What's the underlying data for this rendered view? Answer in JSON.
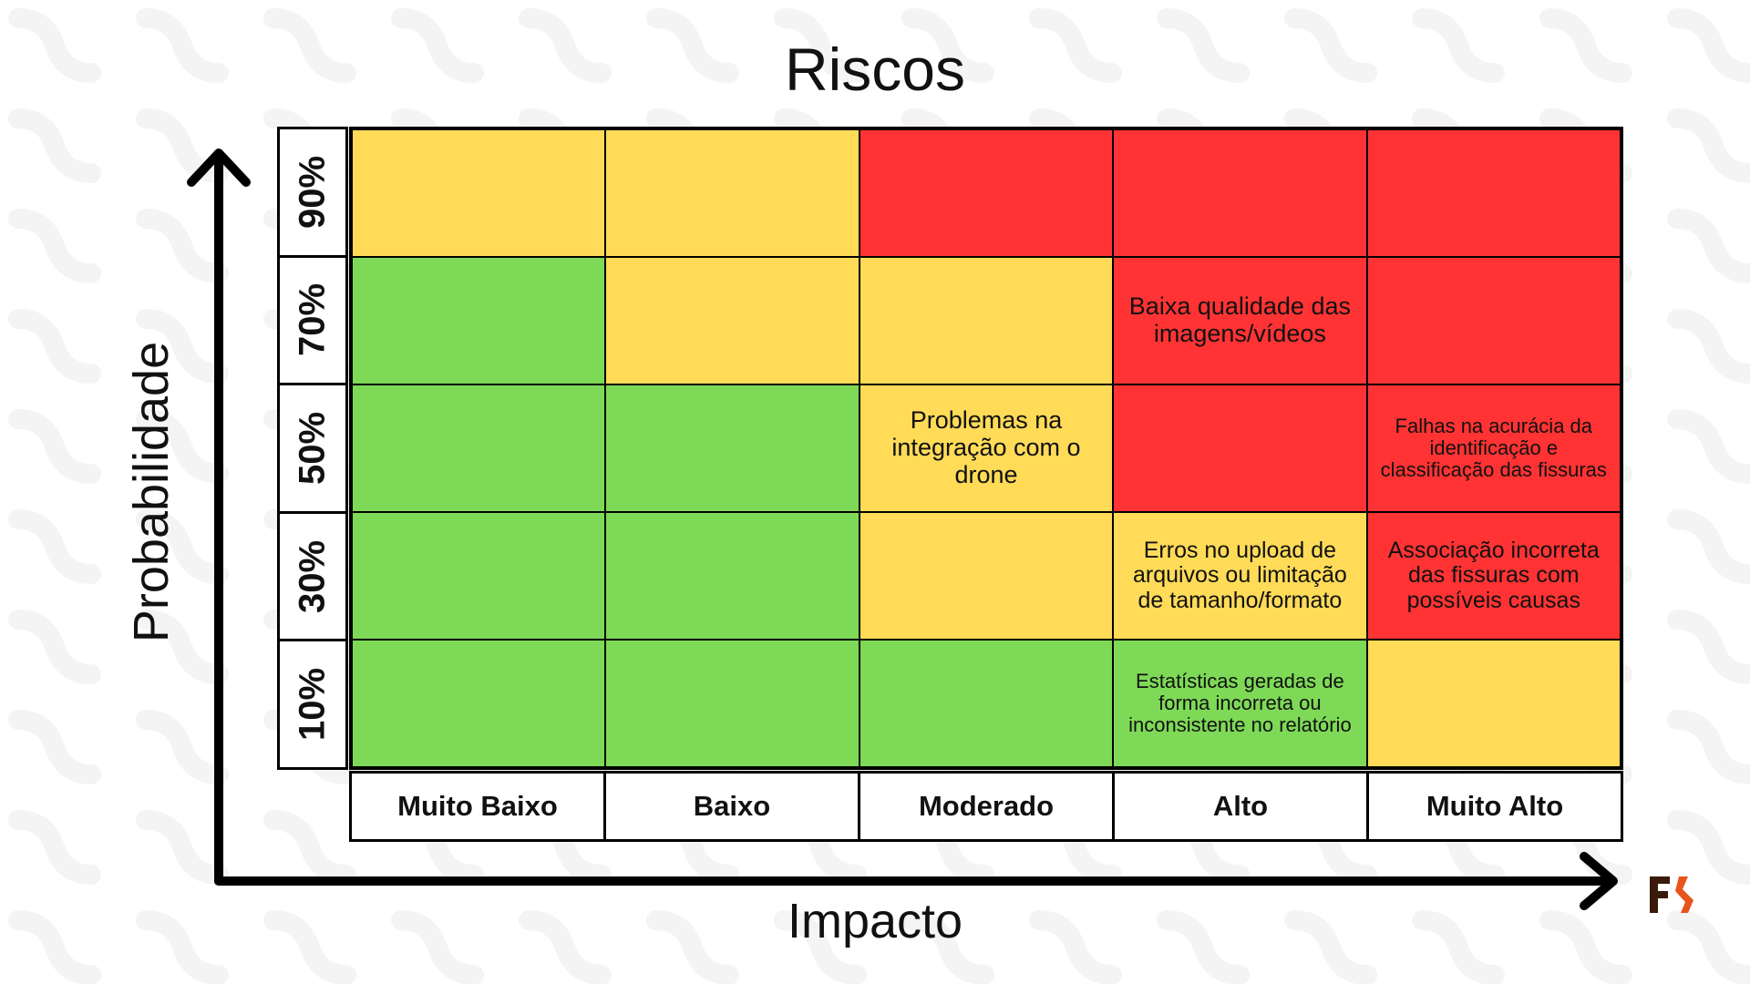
{
  "title": "Riscos",
  "y_axis_label": "Probabilidade",
  "x_axis_label": "Impacto",
  "probability_levels": [
    "90%",
    "70%",
    "50%",
    "30%",
    "10%"
  ],
  "impact_levels": [
    "Muito Baixo",
    "Baixo",
    "Moderado",
    "Alto",
    "Muito Alto"
  ],
  "colors": {
    "red": "#ff3333",
    "yellow": "#ffdb58",
    "green": "#7ed957"
  },
  "matrix": [
    [
      {
        "color": "yellow",
        "text": ""
      },
      {
        "color": "yellow",
        "text": ""
      },
      {
        "color": "red",
        "text": ""
      },
      {
        "color": "red",
        "text": ""
      },
      {
        "color": "red",
        "text": ""
      }
    ],
    [
      {
        "color": "green",
        "text": ""
      },
      {
        "color": "yellow",
        "text": ""
      },
      {
        "color": "yellow",
        "text": ""
      },
      {
        "color": "red",
        "text": "Baixa qualidade das imagens/vídeos"
      },
      {
        "color": "red",
        "text": ""
      }
    ],
    [
      {
        "color": "green",
        "text": ""
      },
      {
        "color": "green",
        "text": ""
      },
      {
        "color": "yellow",
        "text": "Problemas na integração com o drone"
      },
      {
        "color": "red",
        "text": ""
      },
      {
        "color": "red",
        "text": "Falhas na acurácia da identificação e classificação das fissuras"
      }
    ],
    [
      {
        "color": "green",
        "text": ""
      },
      {
        "color": "green",
        "text": ""
      },
      {
        "color": "yellow",
        "text": ""
      },
      {
        "color": "yellow",
        "text": "Erros no upload de arquivos ou limitação de tamanho/formato"
      },
      {
        "color": "red",
        "text": "Associação incorreta das fissuras com possíveis causas"
      }
    ],
    [
      {
        "color": "green",
        "text": ""
      },
      {
        "color": "green",
        "text": ""
      },
      {
        "color": "green",
        "text": ""
      },
      {
        "color": "green",
        "text": "Estatísticas geradas de forma incorreta ou inconsistente no relatório"
      },
      {
        "color": "yellow",
        "text": ""
      }
    ]
  ],
  "logo": {
    "icon": "fr-logo-icon",
    "colors": [
      "#3a1a0a",
      "#e8541c"
    ]
  }
}
